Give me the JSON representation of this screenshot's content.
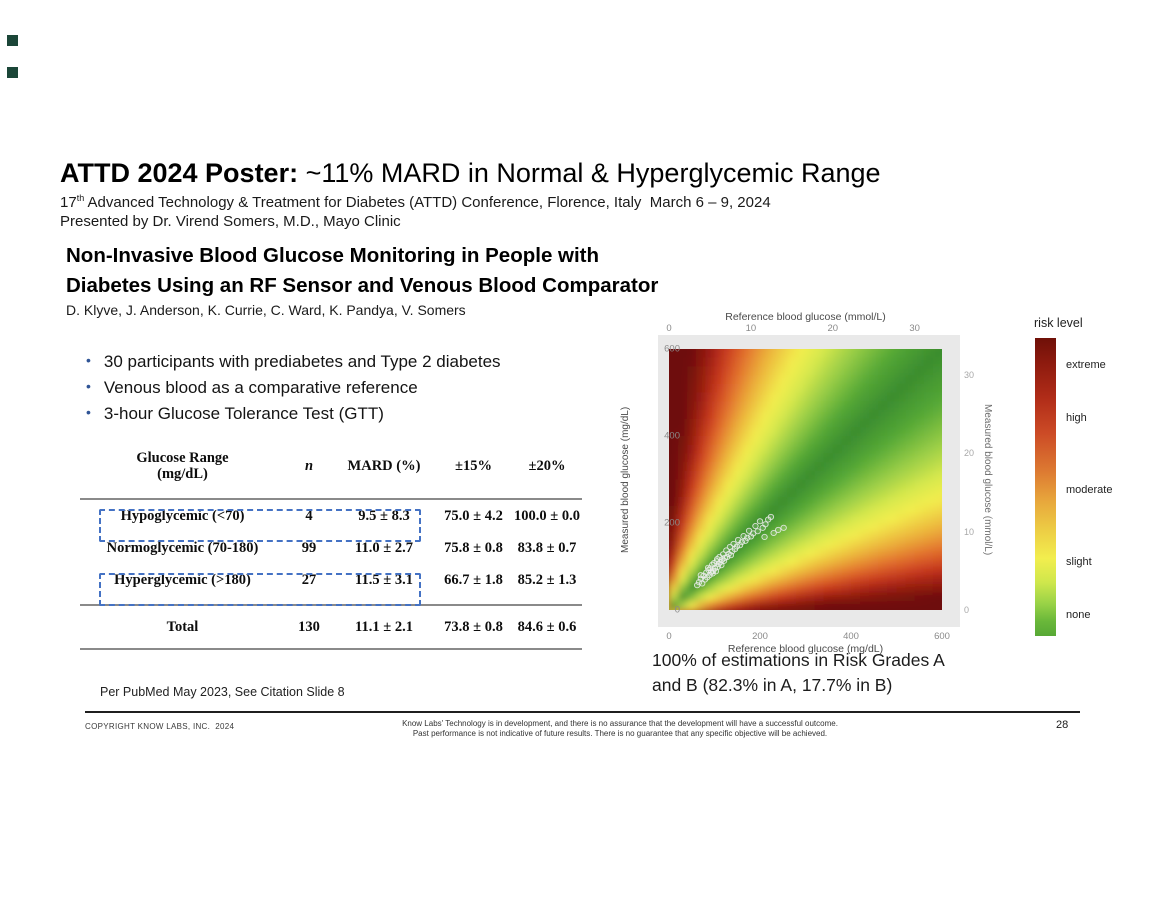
{
  "slide": {
    "title_bold": "ATTD 2024 Poster:",
    "title_rest": " ~11% MARD in Normal & Hyperglycemic Range",
    "subtitle_num": "17",
    "subtitle_sup": "th",
    "subtitle_rest": " Advanced Technology & Treatment for Diabetes (ATTD) Conference, Florence, Italy  March 6 – 9, 2024",
    "presented_by": "Presented by Dr. Virend Somers, M.D., Mayo Clinic",
    "poster_title_line1": "Non-Invasive Blood Glucose Monitoring in People with",
    "poster_title_line2": "Diabetes Using an RF Sensor and Venous Blood Comparator",
    "authors": "D. Klyve, J. Anderson, K. Currie, C. Ward, K. Pandya, V. Somers",
    "bullets": [
      "30 participants with prediabetes and Type 2 diabetes",
      "Venous blood as a comparative reference",
      "3-hour Glucose Tolerance Test (GTT)"
    ],
    "note": "Per PubMed May 2023, See Citation Slide 8",
    "caption_line1": "100% of estimations in Risk Grades A",
    "caption_line2": "and B (82.3% in A, 17.7% in B)",
    "footer_left": "COPYRIGHT KNOW LABS, INC.  2024",
    "footer_center_line1": "Know Labs' Technology is in development, and there is no assurance that the development will have a successful outcome.",
    "footer_center_line2": "Past performance is not indicative of future results. There is no guarantee that any specific objective will be achieved.",
    "page_number": "28"
  },
  "table": {
    "header_col1_line1": "Glucose Range",
    "header_col1_line2": "(mg/dL)",
    "header_n": "n",
    "header_mard": "MARD (%)",
    "header_p15": "±15%",
    "header_p20": "±20%",
    "rows": [
      {
        "range": "Hypoglycemic (<70)",
        "n": "4",
        "mard": "9.5 ± 8.3",
        "p15": "75.0 ± 4.2",
        "p20": "100.0 ± 0.0",
        "highlighted": true
      },
      {
        "range": "Normoglycemic (70-180)",
        "n": "99",
        "mard": "11.0 ± 2.7",
        "p15": "75.8 ± 0.8",
        "p20": "83.8 ± 0.7",
        "highlighted": false
      },
      {
        "range": "Hyperglycemic (>180)",
        "n": "27",
        "mard": "11.5 ± 3.1",
        "p15": "66.7 ± 1.8",
        "p20": "85.2 ± 1.3",
        "highlighted": true
      }
    ],
    "total": {
      "range": "Total",
      "n": "130",
      "mard": "11.1 ± 2.1",
      "p15": "73.8 ± 0.8",
      "p20": "84.6 ± 0.6"
    },
    "highlight_border_color": "#4472c4"
  },
  "chart_data": {
    "type": "heatmap",
    "description": "Surveillance-error-grid style risk surface with paired measurement scatter points along the identity diagonal",
    "x_axis": {
      "label_top": "Reference blood glucose (mmol/L)",
      "label_bottom": "Reference blood glucose (mg/dL)",
      "ticks_mmol": [
        0,
        10,
        20,
        30
      ],
      "ticks_mgdl": [
        0,
        200,
        400,
        600
      ],
      "range_mgdl": [
        0,
        600
      ]
    },
    "y_axis": {
      "label_left": "Measured blood glucose (mg/dL)",
      "label_right": "Measured blood glucose (mmol/L)",
      "ticks_mgdl": [
        0,
        200,
        400,
        600
      ],
      "ticks_mmol": [
        0,
        10,
        20,
        30
      ],
      "range_mgdl": [
        0,
        600
      ]
    },
    "legend": {
      "title": "risk level",
      "levels": [
        "extreme",
        "high",
        "moderate",
        "slight",
        "none"
      ],
      "level_positions_pct": [
        9,
        27,
        51,
        75,
        93
      ]
    },
    "colormap": [
      {
        "t": 0.0,
        "color": "#3a8c2e"
      },
      {
        "t": 0.35,
        "color": "#55a836"
      },
      {
        "t": 0.7,
        "color": "#96cc46"
      },
      {
        "t": 1.05,
        "color": "#d6e84d"
      },
      {
        "t": 1.35,
        "color": "#f3ee4e"
      },
      {
        "t": 1.8,
        "color": "#ecb53c"
      },
      {
        "t": 2.3,
        "color": "#e26f2d"
      },
      {
        "t": 2.8,
        "color": "#c7381f"
      },
      {
        "t": 3.3,
        "color": "#9c1f12"
      },
      {
        "t": 4.2,
        "color": "#6e0f08"
      }
    ],
    "points": [
      [
        62,
        57
      ],
      [
        66,
        64
      ],
      [
        70,
        72
      ],
      [
        73,
        61
      ],
      [
        76,
        79
      ],
      [
        79,
        70
      ],
      [
        82,
        86
      ],
      [
        84,
        75
      ],
      [
        87,
        92
      ],
      [
        89,
        80
      ],
      [
        91,
        96
      ],
      [
        93,
        87
      ],
      [
        95,
        104
      ],
      [
        97,
        90
      ],
      [
        99,
        108
      ],
      [
        101,
        96
      ],
      [
        103,
        89
      ],
      [
        105,
        112
      ],
      [
        107,
        99
      ],
      [
        109,
        106
      ],
      [
        111,
        122
      ],
      [
        113,
        110
      ],
      [
        115,
        103
      ],
      [
        117,
        116
      ],
      [
        119,
        128
      ],
      [
        121,
        113
      ],
      [
        123,
        120
      ],
      [
        126,
        137
      ],
      [
        128,
        122
      ],
      [
        131,
        129
      ],
      [
        134,
        145
      ],
      [
        136,
        126
      ],
      [
        139,
        135
      ],
      [
        142,
        152
      ],
      [
        145,
        140
      ],
      [
        149,
        146
      ],
      [
        152,
        161
      ],
      [
        156,
        149
      ],
      [
        160,
        156
      ],
      [
        164,
        170
      ],
      [
        168,
        159
      ],
      [
        172,
        166
      ],
      [
        176,
        182
      ],
      [
        180,
        169
      ],
      [
        185,
        176
      ],
      [
        190,
        193
      ],
      [
        195,
        181
      ],
      [
        200,
        204
      ],
      [
        206,
        189
      ],
      [
        212,
        197
      ],
      [
        218,
        208
      ],
      [
        224,
        214
      ],
      [
        230,
        177
      ],
      [
        240,
        184
      ],
      [
        252,
        189
      ],
      [
        210,
        168
      ],
      [
        106,
        117
      ],
      [
        96,
        84
      ],
      [
        86,
        97
      ],
      [
        70,
        80
      ]
    ],
    "annotation": {
      "summary": "100% of estimations in Risk Grades A and B (82.3% in A, 17.7% in B)",
      "grade_a_pct": 82.3,
      "grade_b_pct": 17.7,
      "grades_ab_total_pct": 100
    }
  }
}
